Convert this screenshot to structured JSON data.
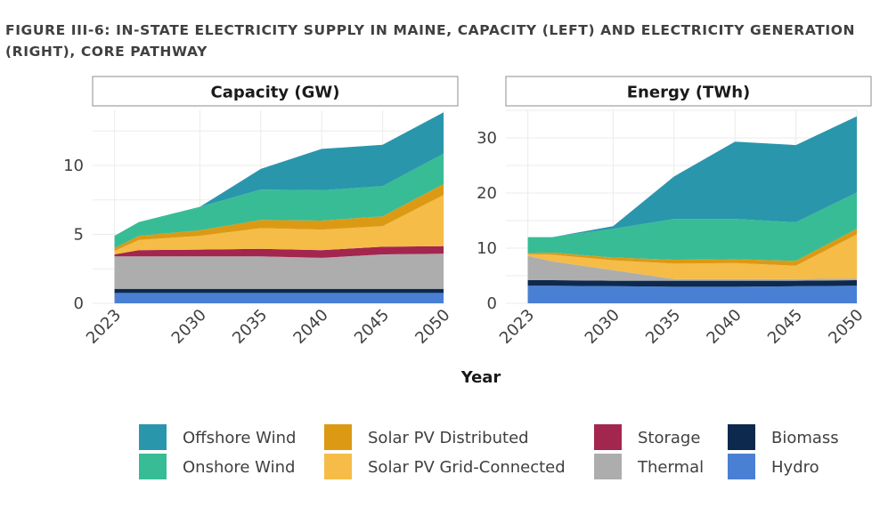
{
  "figure": {
    "title": "FIGURE III-6: IN-STATE ELECTRICITY SUPPLY IN MAINE, CAPACITY (LEFT) AND ELECTRICITY GENERATION (RIGHT), CORE PATHWAY"
  },
  "colors": {
    "Hydro": "#4a80d4",
    "Biomass": "#0d2a4e",
    "Thermal": "#adadad",
    "Storage": "#a3264f",
    "Solar PV Grid-Connected": "#f5bc48",
    "Solar PV Distributed": "#dc9a14",
    "Onshore Wind": "#38bc96",
    "Offshore Wind": "#2a96ac"
  },
  "legend": {
    "items": [
      "Offshore Wind",
      "Solar PV Distributed",
      "Storage",
      "Biomass",
      "Onshore Wind",
      "Solar PV Grid-Connected",
      "Thermal",
      "Hydro"
    ]
  },
  "chart_data": [
    {
      "type": "area",
      "stacked": true,
      "title": "Capacity (GW)",
      "xlabel": "Year",
      "ylabel": "",
      "x": [
        2023,
        2025,
        2030,
        2035,
        2040,
        2045,
        2050
      ],
      "x_ticks": [
        2023,
        2030,
        2035,
        2040,
        2045,
        2050
      ],
      "ylim": [
        0,
        14
      ],
      "y_ticks": [
        0,
        5,
        10
      ],
      "grid": true,
      "series": [
        {
          "name": "Hydro",
          "values": [
            0.75,
            0.75,
            0.75,
            0.75,
            0.75,
            0.75,
            0.75
          ]
        },
        {
          "name": "Biomass",
          "values": [
            0.3,
            0.3,
            0.3,
            0.3,
            0.3,
            0.3,
            0.3
          ]
        },
        {
          "name": "Thermal",
          "values": [
            2.35,
            2.35,
            2.35,
            2.35,
            2.25,
            2.5,
            2.55
          ]
        },
        {
          "name": "Storage",
          "values": [
            0.15,
            0.45,
            0.5,
            0.55,
            0.55,
            0.55,
            0.55
          ]
        },
        {
          "name": "Solar PV Grid-Connected",
          "values": [
            0.25,
            0.75,
            1.0,
            1.5,
            1.5,
            1.5,
            3.7
          ]
        },
        {
          "name": "Solar PV Distributed",
          "values": [
            0.2,
            0.3,
            0.4,
            0.6,
            0.65,
            0.7,
            0.8
          ]
        },
        {
          "name": "Onshore Wind",
          "values": [
            0.9,
            1.0,
            1.7,
            2.2,
            2.2,
            2.2,
            2.2
          ]
        },
        {
          "name": "Offshore Wind",
          "values": [
            0,
            0,
            0,
            1.5,
            3.0,
            3.0,
            3.0
          ]
        }
      ]
    },
    {
      "type": "area",
      "stacked": true,
      "title": "Energy (TWh)",
      "xlabel": "Year",
      "ylabel": "",
      "x": [
        2023,
        2025,
        2030,
        2035,
        2040,
        2045,
        2050
      ],
      "x_ticks": [
        2023,
        2030,
        2035,
        2040,
        2045,
        2050
      ],
      "ylim": [
        0,
        35
      ],
      "y_ticks": [
        0,
        10,
        20,
        30
      ],
      "grid": true,
      "series": [
        {
          "name": "Hydro",
          "values": [
            3.2,
            3.2,
            3.1,
            3.0,
            3.0,
            3.1,
            3.2
          ]
        },
        {
          "name": "Biomass",
          "values": [
            1.0,
            1.0,
            1.0,
            1.1,
            1.1,
            1.0,
            1.0
          ]
        },
        {
          "name": "Thermal",
          "values": [
            4.4,
            3.4,
            1.9,
            0.3,
            0.3,
            0.3,
            0.3
          ]
        },
        {
          "name": "Storage",
          "values": [
            0,
            0,
            0,
            0,
            0,
            0,
            0
          ]
        },
        {
          "name": "Solar PV Grid-Connected",
          "values": [
            0.3,
            1.2,
            1.8,
            2.8,
            2.9,
            2.4,
            8.0
          ]
        },
        {
          "name": "Solar PV Distributed",
          "values": [
            0.2,
            0.4,
            0.5,
            0.7,
            0.7,
            0.9,
            1.0
          ]
        },
        {
          "name": "Onshore Wind",
          "values": [
            2.9,
            2.8,
            5.2,
            7.4,
            7.3,
            7.0,
            6.6
          ]
        },
        {
          "name": "Offshore Wind",
          "values": [
            0,
            0,
            0.5,
            7.7,
            14.0,
            14.0,
            13.8
          ]
        }
      ]
    }
  ]
}
